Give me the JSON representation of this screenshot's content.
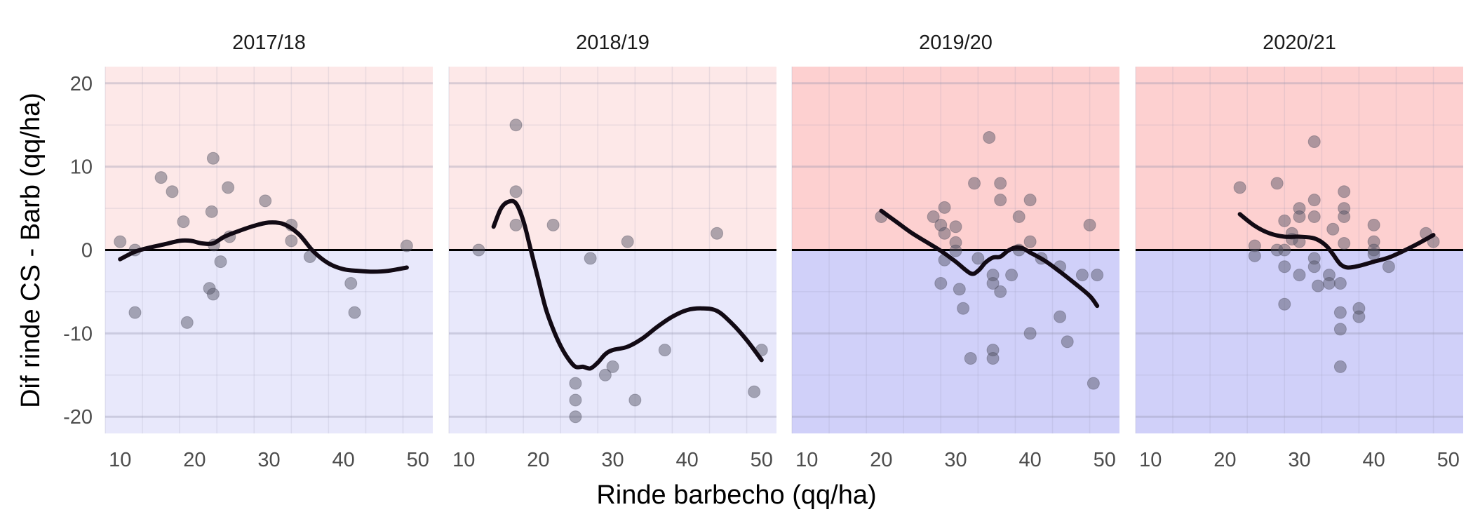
{
  "chart_data": {
    "type": "scatter",
    "xlabel": "Rinde barbecho (qq/ha)",
    "ylabel": "Dif rinde CS - Barb (qq/ha)",
    "xlim": [
      8,
      52
    ],
    "ylim": [
      -22,
      22
    ],
    "x_ticks": [
      10,
      20,
      30,
      40,
      50
    ],
    "y_ticks": [
      20,
      10,
      0,
      -10,
      -20
    ],
    "y_tick_labels": [
      "20",
      "10",
      "0",
      "-10",
      "-20"
    ],
    "grid": true,
    "reference_line_y": 0,
    "colors": {
      "positive_band_light": "#fde8e8",
      "negative_band_light": "#e8e8fb",
      "positive_band_strong": "#fdd0d0",
      "negative_band_strong": "#d0d0f9",
      "point": "#555566",
      "smooth_line": "#120a14"
    },
    "panels": [
      {
        "title": "2017/18",
        "band_intensity": "light",
        "points": [
          [
            10,
            1
          ],
          [
            12,
            0
          ],
          [
            12,
            -7.5
          ],
          [
            15.5,
            8.7
          ],
          [
            17,
            7
          ],
          [
            18.5,
            3.4
          ],
          [
            19,
            -8.7
          ],
          [
            22,
            -4.6
          ],
          [
            22.3,
            4.6
          ],
          [
            22.5,
            11
          ],
          [
            22.5,
            -5.3
          ],
          [
            22.6,
            0.6
          ],
          [
            23.5,
            -1.4
          ],
          [
            24.5,
            7.5
          ],
          [
            24.7,
            1.6
          ],
          [
            29.5,
            5.9
          ],
          [
            33,
            3
          ],
          [
            33,
            1.1
          ],
          [
            35.5,
            -0.8
          ],
          [
            41,
            -4
          ],
          [
            41.5,
            -7.5
          ],
          [
            48.5,
            0.5
          ]
        ],
        "smooth": [
          [
            10,
            -1.1
          ],
          [
            12,
            -0.2
          ],
          [
            14,
            0.3
          ],
          [
            16,
            0.7
          ],
          [
            18,
            1.1
          ],
          [
            19.5,
            1.1
          ],
          [
            21,
            0.8
          ],
          [
            22.5,
            0.8
          ],
          [
            24,
            1.6
          ],
          [
            26,
            2.3
          ],
          [
            28,
            2.9
          ],
          [
            30,
            3.3
          ],
          [
            32,
            3.1
          ],
          [
            34,
            1.9
          ],
          [
            36,
            -0.2
          ],
          [
            38,
            -1.6
          ],
          [
            40,
            -2.3
          ],
          [
            42,
            -2.5
          ],
          [
            44,
            -2.6
          ],
          [
            46,
            -2.5
          ],
          [
            48.5,
            -2.1
          ]
        ]
      },
      {
        "title": "2018/19",
        "band_intensity": "light",
        "points": [
          [
            12,
            0
          ],
          [
            17,
            15
          ],
          [
            17,
            7
          ],
          [
            17,
            3
          ],
          [
            22,
            3
          ],
          [
            25,
            -16
          ],
          [
            25,
            -18
          ],
          [
            25,
            -20
          ],
          [
            27,
            -1
          ],
          [
            29,
            -15
          ],
          [
            30,
            -14
          ],
          [
            32,
            1
          ],
          [
            33,
            -18
          ],
          [
            37,
            -12
          ],
          [
            44,
            2
          ],
          [
            49,
            -17
          ],
          [
            50,
            -12
          ]
        ],
        "smooth": [
          [
            14,
            2.8
          ],
          [
            15,
            5
          ],
          [
            16,
            5.8
          ],
          [
            17,
            5.6
          ],
          [
            18,
            3.5
          ],
          [
            19,
            0
          ],
          [
            20,
            -3.5
          ],
          [
            21,
            -7
          ],
          [
            22,
            -9.5
          ],
          [
            23,
            -11.5
          ],
          [
            24,
            -13
          ],
          [
            25,
            -14
          ],
          [
            26,
            -14
          ],
          [
            27,
            -14.2
          ],
          [
            28,
            -13.5
          ],
          [
            29,
            -12.5
          ],
          [
            30,
            -12
          ],
          [
            32,
            -11.6
          ],
          [
            34,
            -10.6
          ],
          [
            36,
            -9.2
          ],
          [
            38,
            -8
          ],
          [
            40,
            -7.2
          ],
          [
            42,
            -7
          ],
          [
            44,
            -7.3
          ],
          [
            46,
            -8.8
          ],
          [
            48,
            -10.8
          ],
          [
            50,
            -13.2
          ]
        ]
      },
      {
        "title": "2019/20",
        "band_intensity": "strong",
        "points": [
          [
            20,
            4
          ],
          [
            27,
            4
          ],
          [
            28,
            3
          ],
          [
            28,
            -4
          ],
          [
            28.5,
            5.1
          ],
          [
            28.5,
            2
          ],
          [
            28.5,
            -1.2
          ],
          [
            30,
            2.8
          ],
          [
            30,
            0.9
          ],
          [
            30,
            -0.1
          ],
          [
            30.5,
            -4.7
          ],
          [
            31,
            -7
          ],
          [
            32,
            -13
          ],
          [
            32.5,
            8
          ],
          [
            33,
            -1
          ],
          [
            34.5,
            13.5
          ],
          [
            35,
            -3
          ],
          [
            35,
            -4
          ],
          [
            35,
            -12
          ],
          [
            35,
            -13
          ],
          [
            36,
            8
          ],
          [
            36,
            6
          ],
          [
            36,
            -5
          ],
          [
            37.5,
            -3
          ],
          [
            38.5,
            4
          ],
          [
            38.5,
            0
          ],
          [
            40,
            6
          ],
          [
            40,
            1
          ],
          [
            40,
            -10
          ],
          [
            41.5,
            -1
          ],
          [
            44,
            -8
          ],
          [
            44,
            -2
          ],
          [
            45,
            -11
          ],
          [
            47,
            -3
          ],
          [
            48,
            3
          ],
          [
            48.5,
            -16
          ],
          [
            49,
            -3
          ]
        ],
        "smooth": [
          [
            20,
            4.7
          ],
          [
            22,
            3.4
          ],
          [
            24,
            2.1
          ],
          [
            26,
            1
          ],
          [
            28,
            -0.1
          ],
          [
            30,
            -1.4
          ],
          [
            32,
            -2.8
          ],
          [
            33,
            -2.5
          ],
          [
            34,
            -1.5
          ],
          [
            35,
            -0.9
          ],
          [
            36,
            -0.8
          ],
          [
            37,
            -0.1
          ],
          [
            38,
            0.3
          ],
          [
            39,
            0.2
          ],
          [
            40,
            -0.3
          ],
          [
            42,
            -1.3
          ],
          [
            44,
            -2.6
          ],
          [
            46,
            -4
          ],
          [
            48,
            -5.5
          ],
          [
            49,
            -6.7
          ]
        ]
      },
      {
        "title": "2020/21",
        "band_intensity": "strong",
        "points": [
          [
            22,
            7.5
          ],
          [
            24,
            0.5
          ],
          [
            24,
            -0.7
          ],
          [
            27,
            8
          ],
          [
            27,
            0
          ],
          [
            28,
            3.5
          ],
          [
            28,
            0
          ],
          [
            28,
            -2
          ],
          [
            28,
            -6.5
          ],
          [
            29,
            2
          ],
          [
            29,
            1.3
          ],
          [
            30,
            5
          ],
          [
            30,
            4
          ],
          [
            30,
            1
          ],
          [
            30,
            -3
          ],
          [
            32,
            13
          ],
          [
            32,
            6
          ],
          [
            32,
            4
          ],
          [
            32,
            -1
          ],
          [
            32,
            -2
          ],
          [
            32.5,
            -4.3
          ],
          [
            34,
            -3
          ],
          [
            34,
            -4
          ],
          [
            34.5,
            2.5
          ],
          [
            35.5,
            -4
          ],
          [
            35.5,
            -7.5
          ],
          [
            35.5,
            -9.5
          ],
          [
            35.5,
            -14
          ],
          [
            36,
            7
          ],
          [
            36,
            5
          ],
          [
            36,
            4
          ],
          [
            36,
            0.8
          ],
          [
            38,
            -7
          ],
          [
            38,
            -8
          ],
          [
            40,
            3
          ],
          [
            40,
            1
          ],
          [
            40,
            0
          ],
          [
            40,
            -0.5
          ],
          [
            42,
            -2
          ],
          [
            47,
            2
          ],
          [
            48,
            1
          ]
        ],
        "smooth": [
          [
            22,
            4.3
          ],
          [
            24,
            2.9
          ],
          [
            26,
            2
          ],
          [
            28,
            1.6
          ],
          [
            30,
            1.6
          ],
          [
            32,
            1.4
          ],
          [
            33.5,
            0.6
          ],
          [
            34.5,
            -0.5
          ],
          [
            35.5,
            -1.7
          ],
          [
            36.5,
            -2.1
          ],
          [
            38,
            -1.9
          ],
          [
            40,
            -1.4
          ],
          [
            42,
            -0.9
          ],
          [
            44,
            -0.1
          ],
          [
            46,
            0.8
          ],
          [
            48,
            1.8
          ]
        ]
      }
    ]
  }
}
